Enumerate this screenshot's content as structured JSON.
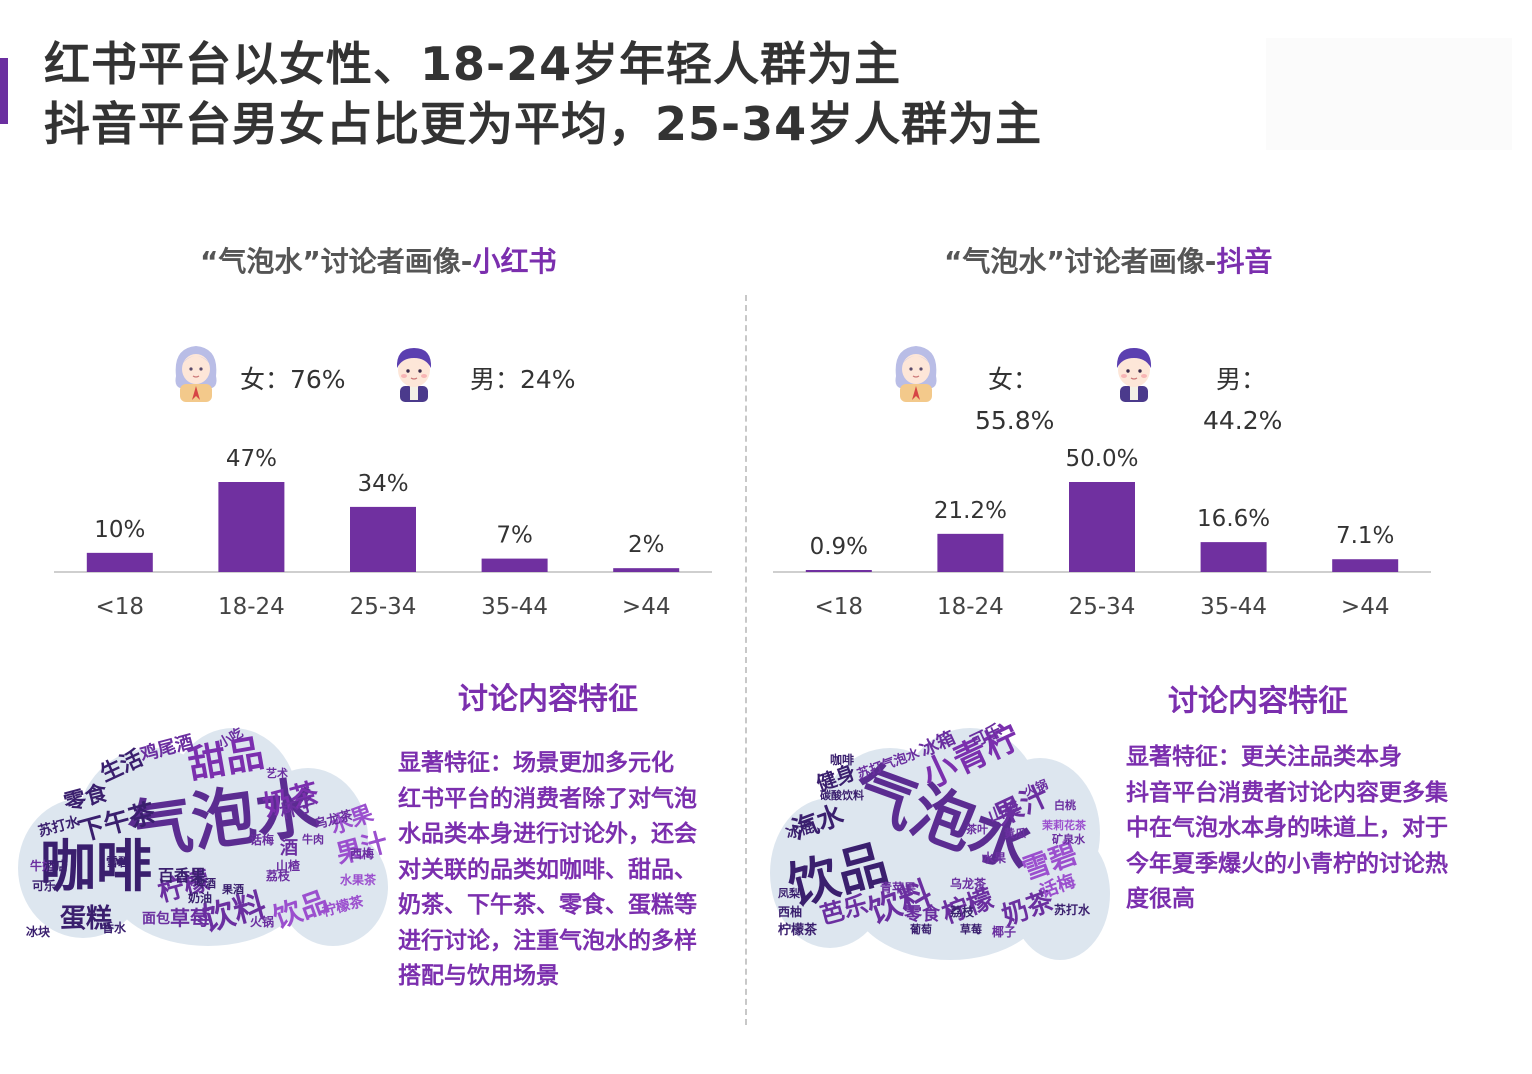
{
  "header": {
    "line1": "红书平台以女性、18-24岁年轻人群为主",
    "line2": "抖音平台男女占比更为平均，25-34岁人群为主"
  },
  "colors": {
    "accent": "#6b2fa0",
    "bar": "#7030a0",
    "text": "#333333",
    "cloud_bg": "#dde6ef"
  },
  "left": {
    "title_prefix": "“气泡水”讨论者画像-",
    "title_highlight": "小红书",
    "female_icon": "girl-avatar-icon",
    "male_icon": "boy-avatar-icon",
    "female": "女：76%",
    "male": "男：24%",
    "section_title": "讨论内容特征",
    "desc_lines": [
      "显著特征：场景更加多元化",
      "红书平台的消费者除了对气泡",
      "水品类本身进行讨论外，还会",
      "对关联的品类如咖啡、甜品、",
      "奶茶、下午茶、零食、蛋糕等",
      "进行讨论，注重气泡水的多样",
      "搭配与饮用场景"
    ],
    "cloud_words": [
      {
        "t": "气泡水",
        "s": 64,
        "c": "#5b2c91",
        "r": -8
      },
      {
        "t": "咖啡",
        "s": 56,
        "c": "#3a1f6e",
        "r": 0
      },
      {
        "t": "甜品",
        "s": 38,
        "c": "#7b2fae",
        "r": -10
      },
      {
        "t": "饮料",
        "s": 32,
        "c": "#6b2fa0",
        "r": -15
      },
      {
        "t": "饮品",
        "s": 28,
        "c": "#9b4fce",
        "r": -20
      },
      {
        "t": "奶茶",
        "s": 28,
        "c": "#7b2fae",
        "r": -15
      },
      {
        "t": "下午茶",
        "s": 26,
        "c": "#3a1f6e",
        "r": -15
      },
      {
        "t": "柠檬",
        "s": 26,
        "c": "#6b2fa0",
        "r": -15
      },
      {
        "t": "蛋糕",
        "s": 26,
        "c": "#3a1f6e",
        "r": 0
      },
      {
        "t": "果汁",
        "s": 26,
        "c": "#9b4fce",
        "r": -15
      },
      {
        "t": "生活",
        "s": 22,
        "c": "#3a1f6e",
        "r": -25
      },
      {
        "t": "零食",
        "s": 22,
        "c": "#3a1f6e",
        "r": -15
      },
      {
        "t": "水果",
        "s": 22,
        "c": "#9b4fce",
        "r": -20
      },
      {
        "t": "草莓",
        "s": 20,
        "c": "#6b2fa0",
        "r": 0
      },
      {
        "t": "鸡尾酒",
        "s": 18,
        "c": "#6b2fa0",
        "r": -15
      },
      {
        "t": "杯子",
        "s": 18,
        "c": "#6b2fa0",
        "r": -15
      },
      {
        "t": "百香果",
        "s": 16,
        "c": "#3a1f6e",
        "r": 0
      },
      {
        "t": "苏打水",
        "s": 14,
        "c": "#3a1f6e",
        "r": -15
      },
      {
        "t": "酒",
        "s": 18,
        "c": "#6b2fa0",
        "r": 0
      },
      {
        "t": "面包",
        "s": 14,
        "c": "#6b2fa0",
        "r": 0
      },
      {
        "t": "柠檬茶",
        "s": 14,
        "c": "#9b4fce",
        "r": -15
      },
      {
        "t": "乌龙茶",
        "s": 13,
        "c": "#6b2fa0",
        "r": -15
      },
      {
        "t": "小吃",
        "s": 13,
        "c": "#6b2fa0",
        "r": -30
      },
      {
        "t": "冰块",
        "s": 12,
        "c": "#3a1f6e",
        "r": 0
      },
      {
        "t": "雪碧",
        "s": 12,
        "c": "#3a1f6e",
        "r": 0
      },
      {
        "t": "话梅",
        "s": 12,
        "c": "#6b2fa0",
        "r": 0
      },
      {
        "t": "牛奶",
        "s": 12,
        "c": "#6b2fa0",
        "r": 0
      },
      {
        "t": "水果茶",
        "s": 12,
        "c": "#9b4fce",
        "r": 0
      },
      {
        "t": "火锅",
        "s": 12,
        "c": "#6b2fa0",
        "r": 0
      },
      {
        "t": "西梅",
        "s": 12,
        "c": "#6b2fa0",
        "r": 0
      },
      {
        "t": "艺术",
        "s": 11,
        "c": "#6b2fa0",
        "r": 0
      },
      {
        "t": "香水",
        "s": 12,
        "c": "#3a1f6e",
        "r": 0
      },
      {
        "t": "酒店",
        "s": 12,
        "c": "#3a1f6e",
        "r": 0
      },
      {
        "t": "可乐",
        "s": 12,
        "c": "#3a1f6e",
        "r": 0
      },
      {
        "t": "啤酒",
        "s": 11,
        "c": "#3a1f6e",
        "r": 0
      },
      {
        "t": "荔枝",
        "s": 12,
        "c": "#6b2fa0",
        "r": 0
      },
      {
        "t": "奶油",
        "s": 12,
        "c": "#3a1f6e",
        "r": 0
      },
      {
        "t": "牛肉",
        "s": 11,
        "c": "#6b2fa0",
        "r": 0
      },
      {
        "t": "山楂",
        "s": 12,
        "c": "#6b2fa0",
        "r": 0
      },
      {
        "t": "果酒",
        "s": 11,
        "c": "#3a1f6e",
        "r": 0
      }
    ]
  },
  "right": {
    "title_prefix": "“气泡水”讨论者画像-",
    "title_highlight": "抖音",
    "female_icon": "girl-avatar-icon",
    "male_icon": "boy-avatar-icon",
    "female_label": "女：",
    "female_value": "55.8%",
    "male_label": "男：",
    "male_value": "44.2%",
    "section_title": "讨论内容特征",
    "desc_lines": [
      "显著特征：更关注品类本身",
      "抖音平台消费者讨论内容更多集",
      "中在气泡水本身的味道上，对于",
      "今年夏季爆火的小青柠的讨论热",
      "度很高"
    ],
    "cloud_words": [
      {
        "t": "气泡水",
        "s": 62,
        "c": "#5b2c91",
        "r": 20
      },
      {
        "t": "饮品",
        "s": 50,
        "c": "#3a1f6e",
        "r": -15
      },
      {
        "t": "小青柠",
        "s": 34,
        "c": "#7b2fae",
        "r": -25
      },
      {
        "t": "饮料",
        "s": 32,
        "c": "#6b2fa0",
        "r": -20
      },
      {
        "t": "果汁",
        "s": 28,
        "c": "#6b2fa0",
        "r": -25
      },
      {
        "t": "雪碧",
        "s": 28,
        "c": "#9b4fce",
        "r": -20
      },
      {
        "t": "柠檬",
        "s": 26,
        "c": "#6b2fa0",
        "r": -20
      },
      {
        "t": "奶茶",
        "s": 26,
        "c": "#6b2fa0",
        "r": -20
      },
      {
        "t": "汽水",
        "s": 26,
        "c": "#3a1f6e",
        "r": -20
      },
      {
        "t": "芭乐",
        "s": 24,
        "c": "#6b2fa0",
        "r": -15
      },
      {
        "t": "健身",
        "s": 20,
        "c": "#3a1f6e",
        "r": -20
      },
      {
        "t": "冰箱",
        "s": 18,
        "c": "#6b2fa0",
        "r": -25
      },
      {
        "t": "可乐",
        "s": 16,
        "c": "#6b2fa0",
        "r": -25
      },
      {
        "t": "话梅",
        "s": 18,
        "c": "#9b4fce",
        "r": -20
      },
      {
        "t": "零食",
        "s": 18,
        "c": "#6b2fa0",
        "r": 0
      },
      {
        "t": "苏打气泡水",
        "s": 13,
        "c": "#6b2fa0",
        "r": -20
      },
      {
        "t": "冰棍",
        "s": 14,
        "c": "#3a1f6e",
        "r": -15
      },
      {
        "t": "山楂",
        "s": 16,
        "c": "#6b2fa0",
        "r": -20
      },
      {
        "t": "柠檬茶",
        "s": 13,
        "c": "#3a1f6e",
        "r": 0
      },
      {
        "t": "乌龙茶",
        "s": 12,
        "c": "#6b2fa0",
        "r": 0
      },
      {
        "t": "青苹果",
        "s": 12,
        "c": "#6b2fa0",
        "r": 0
      },
      {
        "t": "荔枝",
        "s": 12,
        "c": "#3a1f6e",
        "r": 0
      },
      {
        "t": "西柚",
        "s": 12,
        "c": "#3a1f6e",
        "r": 0
      },
      {
        "t": "椰子",
        "s": 12,
        "c": "#6b2fa0",
        "r": 0
      },
      {
        "t": "苏打水",
        "s": 12,
        "c": "#3a1f6e",
        "r": 0
      },
      {
        "t": "水果",
        "s": 12,
        "c": "#6b2fa0",
        "r": 0
      },
      {
        "t": "茉莉花茶",
        "s": 11,
        "c": "#9b4fce",
        "r": 0
      },
      {
        "t": "火锅",
        "s": 12,
        "c": "#6b2fa0",
        "r": -20
      },
      {
        "t": "白桃",
        "s": 11,
        "c": "#6b2fa0",
        "r": 0
      },
      {
        "t": "黄瓜",
        "s": 11,
        "c": "#6b2fa0",
        "r": 0
      },
      {
        "t": "咖啡",
        "s": 12,
        "c": "#3a1f6e",
        "r": 0
      },
      {
        "t": "草莓",
        "s": 11,
        "c": "#3a1f6e",
        "r": 0
      },
      {
        "t": "茶叶",
        "s": 11,
        "c": "#6b2fa0",
        "r": 0
      },
      {
        "t": "矿泉水",
        "s": 11,
        "c": "#6b2fa0",
        "r": 0
      },
      {
        "t": "碳酸饮料",
        "s": 11,
        "c": "#3a1f6e",
        "r": 0
      },
      {
        "t": "凤梨",
        "s": 11,
        "c": "#3a1f6e",
        "r": 0
      },
      {
        "t": "葡萄",
        "s": 11,
        "c": "#3a1f6e",
        "r": 0
      }
    ]
  },
  "chart_data": [
    {
      "type": "bar",
      "title": "“气泡水”讨论者画像-小红书",
      "categories": [
        "<18",
        "18-24",
        "25-34",
        "35-44",
        ">44"
      ],
      "values": [
        10,
        47,
        34,
        7,
        2
      ],
      "labels": [
        "10%",
        "47%",
        "34%",
        "7%",
        "2%"
      ],
      "unit": "%",
      "ylim": [
        0,
        47
      ],
      "grid": false
    },
    {
      "type": "bar",
      "title": "“气泡水”讨论者画像-抖音",
      "categories": [
        "<18",
        "18-24",
        "25-34",
        "35-44",
        ">44"
      ],
      "values": [
        0.9,
        21.2,
        50.0,
        16.6,
        7.1
      ],
      "labels": [
        "0.9%",
        "21.2%",
        "50.0%",
        "16.6%",
        "7.1%"
      ],
      "unit": "%",
      "ylim": [
        0,
        50
      ],
      "grid": false
    }
  ]
}
